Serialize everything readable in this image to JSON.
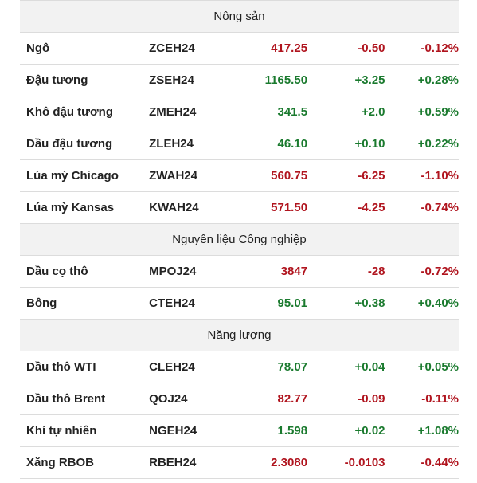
{
  "colors": {
    "up": "#1a7a2e",
    "down": "#b0141e"
  },
  "sections": [
    {
      "title": "Nông sản",
      "rows": [
        {
          "name": "Ngô",
          "code": "ZCEH24",
          "price": "417.25",
          "change": "-0.50",
          "pct": "-0.12%",
          "dir": "down"
        },
        {
          "name": "Đậu tương",
          "code": "ZSEH24",
          "price": "1165.50",
          "change": "+3.25",
          "pct": "+0.28%",
          "dir": "up"
        },
        {
          "name": "Khô đậu tương",
          "code": "ZMEH24",
          "price": "341.5",
          "change": "+2.0",
          "pct": "+0.59%",
          "dir": "up"
        },
        {
          "name": "Dầu đậu tương",
          "code": "ZLEH24",
          "price": "46.10",
          "change": "+0.10",
          "pct": "+0.22%",
          "dir": "up"
        },
        {
          "name": "Lúa mỳ Chicago",
          "code": "ZWAH24",
          "price": "560.75",
          "change": "-6.25",
          "pct": "-1.10%",
          "dir": "down"
        },
        {
          "name": "Lúa mỳ Kansas",
          "code": "KWAH24",
          "price": "571.50",
          "change": "-4.25",
          "pct": "-0.74%",
          "dir": "down"
        }
      ]
    },
    {
      "title": "Nguyên liệu Công nghiệp",
      "rows": [
        {
          "name": "Dầu cọ thô",
          "code": "MPOJ24",
          "price": "3847",
          "change": "-28",
          "pct": "-0.72%",
          "dir": "down"
        },
        {
          "name": "Bông",
          "code": "CTEH24",
          "price": "95.01",
          "change": "+0.38",
          "pct": "+0.40%",
          "dir": "up"
        }
      ]
    },
    {
      "title": "Năng lượng",
      "rows": [
        {
          "name": "Dầu thô WTI",
          "code": "CLEH24",
          "price": "78.07",
          "change": "+0.04",
          "pct": "+0.05%",
          "dir": "up"
        },
        {
          "name": "Dầu thô Brent",
          "code": "QOJ24",
          "price": "82.77",
          "change": "-0.09",
          "pct": "-0.11%",
          "dir": "down"
        },
        {
          "name": "Khí tự nhiên",
          "code": "NGEH24",
          "price": "1.598",
          "change": "+0.02",
          "pct": "+1.08%",
          "dir": "up"
        },
        {
          "name": "Xăng RBOB",
          "code": "RBEH24",
          "price": "2.3080",
          "change": "-0.0103",
          "pct": "-0.44%",
          "dir": "down"
        }
      ]
    }
  ]
}
